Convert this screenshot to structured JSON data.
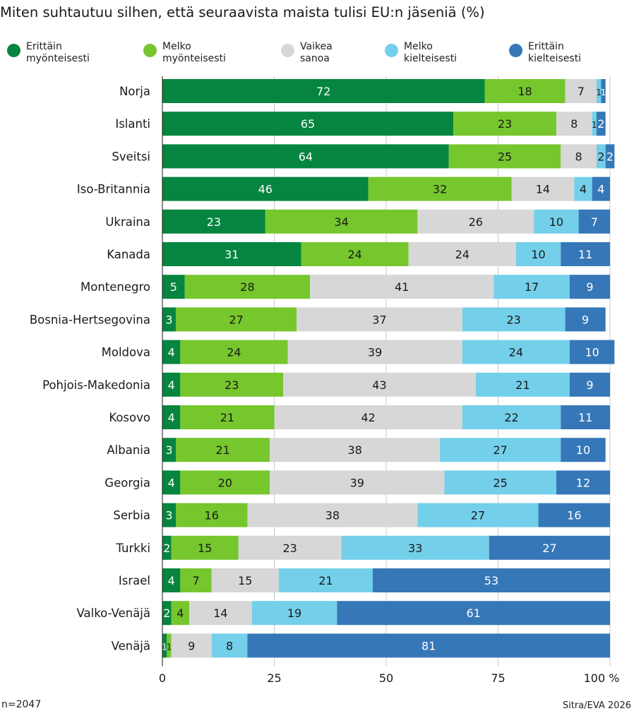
{
  "chart_data": {
    "type": "bar",
    "orientation": "horizontal",
    "stacked": true,
    "title": "Miten suhtautuu silhen, että seuraavista maista tulisi EU:n jäseniä (%)",
    "categories": [
      "Norja",
      "Islanti",
      "Sveitsi",
      "Iso-Britannia",
      "Ukraina",
      "Kanada",
      "Montenegro",
      "Bosnia-Hertsegovina",
      "Moldova",
      "Pohjois-Makedonia",
      "Kosovo",
      "Albania",
      "Georgia",
      "Serbia",
      "Turkki",
      "Israel",
      "Valko-Venäjä",
      "Venäjä"
    ],
    "series": [
      {
        "name": "Erittäin\nmyönteisesti",
        "color": "#05853f",
        "label_color": "#ffffff",
        "values": [
          72,
          65,
          64,
          46,
          23,
          31,
          5,
          3,
          4,
          4,
          4,
          3,
          4,
          3,
          2,
          4,
          2,
          1
        ]
      },
      {
        "name": "Melko\nmyönteisesti",
        "color": "#76c62e",
        "label_color": "#1a1a1a",
        "values": [
          18,
          23,
          25,
          32,
          34,
          24,
          28,
          27,
          24,
          23,
          21,
          21,
          20,
          16,
          15,
          7,
          4,
          1
        ]
      },
      {
        "name": "Vaikea\nsanoa",
        "color": "#d7d7d7",
        "label_color": "#1a1a1a",
        "values": [
          7,
          8,
          8,
          14,
          26,
          24,
          41,
          37,
          39,
          43,
          42,
          38,
          39,
          38,
          23,
          15,
          14,
          9
        ]
      },
      {
        "name": "Melko\nkielteisesti",
        "color": "#74cfea",
        "label_color": "#1a1a1a",
        "values": [
          1,
          1,
          2,
          4,
          10,
          10,
          17,
          23,
          24,
          21,
          22,
          27,
          25,
          27,
          33,
          21,
          19,
          8
        ]
      },
      {
        "name": "Erittäin\nkielteisesti",
        "color": "#3677b8",
        "label_color": "#ffffff",
        "values": [
          1,
          2,
          2,
          4,
          7,
          11,
          9,
          9,
          10,
          9,
          11,
          10,
          12,
          16,
          27,
          53,
          61,
          81
        ]
      }
    ],
    "xlim": [
      0,
      100
    ],
    "xticks": [
      0,
      25,
      50,
      75,
      100
    ],
    "xtick_labels": [
      "0",
      "25",
      "50",
      "75",
      "100 %"
    ],
    "grid": true,
    "legend_position": "top"
  },
  "footer": {
    "n_label": "n=2047",
    "source": "Sitra/EVA 2026"
  }
}
